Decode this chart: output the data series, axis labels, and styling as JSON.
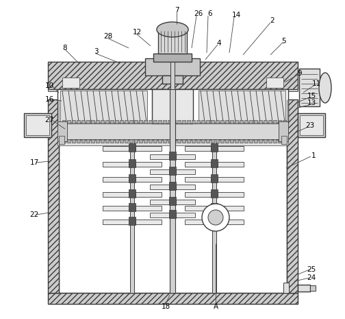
{
  "bg_color": "#ffffff",
  "lc": "#3a3a3a",
  "lc_thin": "#555555",
  "fc_hatch": "#cccccc",
  "fc_white": "#ffffff",
  "fc_light": "#e8e8e8",
  "fc_mid": "#c8c8c8",
  "fc_dark": "#888888",
  "font_size": 7.5,
  "label_color": "#000000",
  "figsize": [
    5.04,
    4.65
  ],
  "dpi": 100
}
